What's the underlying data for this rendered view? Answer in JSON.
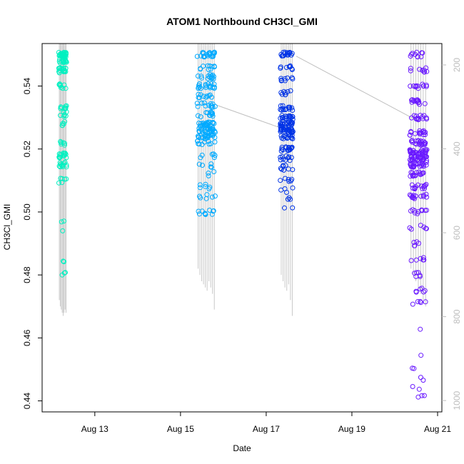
{
  "chart_data": {
    "type": "scatter",
    "title": "ATOM1 Northbound CH3Cl_GMI",
    "xlabel": "Date",
    "ylabel": "CH3Cl_GMI",
    "x_ticks": [
      "Aug 13",
      "Aug 15",
      "Aug 17",
      "Aug 19",
      "Aug 21"
    ],
    "x_tick_days": [
      13,
      15,
      17,
      19,
      21
    ],
    "xlim_days": [
      11.77,
      21.1
    ],
    "ylim": [
      0.4365,
      0.5535
    ],
    "y_ticks": [
      0.44,
      0.46,
      0.48,
      0.5,
      0.52,
      0.54
    ],
    "right_axis": {
      "ticks": [
        200,
        400,
        600,
        800,
        1000
      ],
      "lim": [
        149,
        1027
      ],
      "color": "#bdbdbd",
      "description": "secondary axis, values increase downward"
    },
    "series": [
      {
        "color": "#00f0c0",
        "day_center": 12.25,
        "day_spread": 0.18,
        "samples": [
          [
            0.55,
            32
          ],
          [
            0.548,
            14
          ],
          [
            0.545,
            18
          ],
          [
            0.54,
            8
          ],
          [
            0.533,
            8
          ],
          [
            0.531,
            7
          ],
          [
            0.528,
            5
          ],
          [
            0.522,
            6
          ],
          [
            0.518,
            14
          ],
          [
            0.515,
            13
          ],
          [
            0.51,
            6
          ],
          [
            0.497,
            2
          ],
          [
            0.494,
            1
          ],
          [
            0.484,
            2
          ],
          [
            0.48,
            3
          ]
        ],
        "curtain_bottom_values": [
          0.472,
          0.47,
          0.469,
          0.468,
          0.467,
          0.468,
          0.469,
          0.468
        ]
      },
      {
        "color": "#00aaff",
        "day_center": 15.6,
        "day_spread": 0.42,
        "samples": [
          [
            0.55,
            22
          ],
          [
            0.546,
            10
          ],
          [
            0.543,
            14
          ],
          [
            0.54,
            18
          ],
          [
            0.537,
            10
          ],
          [
            0.534,
            14
          ],
          [
            0.531,
            12
          ],
          [
            0.528,
            22
          ],
          [
            0.526,
            26
          ],
          [
            0.524,
            20
          ],
          [
            0.522,
            10
          ],
          [
            0.518,
            6
          ],
          [
            0.515,
            5
          ],
          [
            0.512,
            3
          ],
          [
            0.508,
            6
          ],
          [
            0.505,
            6
          ],
          [
            0.5,
            10
          ]
        ],
        "curtain_bottom_values": [
          0.482,
          0.48,
          0.478,
          0.477,
          0.476,
          0.475,
          0.478,
          0.476,
          0.474,
          0.469
        ]
      },
      {
        "color": "#0033e6",
        "day_center": 17.48,
        "day_spread": 0.3,
        "samples": [
          [
            0.55,
            16
          ],
          [
            0.546,
            8
          ],
          [
            0.542,
            8
          ],
          [
            0.538,
            8
          ],
          [
            0.533,
            14
          ],
          [
            0.53,
            18
          ],
          [
            0.528,
            22
          ],
          [
            0.526,
            26
          ],
          [
            0.524,
            14
          ],
          [
            0.52,
            16
          ],
          [
            0.517,
            10
          ],
          [
            0.514,
            8
          ],
          [
            0.51,
            6
          ],
          [
            0.507,
            4
          ],
          [
            0.504,
            3
          ],
          [
            0.501,
            2
          ]
        ],
        "curtain_bottom_values": [
          0.48,
          0.478,
          0.476,
          0.475,
          0.477,
          0.472,
          0.467
        ]
      },
      {
        "color": "#6a1aff",
        "day_center": 20.55,
        "day_spread": 0.4,
        "samples": [
          [
            0.55,
            10
          ],
          [
            0.545,
            10
          ],
          [
            0.54,
            12
          ],
          [
            0.535,
            14
          ],
          [
            0.53,
            14
          ],
          [
            0.525,
            16
          ],
          [
            0.522,
            22
          ],
          [
            0.519,
            30
          ],
          [
            0.517,
            30
          ],
          [
            0.515,
            24
          ],
          [
            0.512,
            16
          ],
          [
            0.508,
            14
          ],
          [
            0.505,
            14
          ],
          [
            0.5,
            10
          ],
          [
            0.495,
            6
          ],
          [
            0.49,
            5
          ],
          [
            0.485,
            6
          ],
          [
            0.48,
            6
          ],
          [
            0.475,
            6
          ],
          [
            0.471,
            5
          ],
          [
            0.463,
            1
          ],
          [
            0.455,
            1
          ],
          [
            0.45,
            2
          ],
          [
            0.447,
            2
          ],
          [
            0.444,
            2
          ],
          [
            0.441,
            3
          ]
        ],
        "curtain_bottom_values": [
          0.482,
          0.48,
          0.478,
          0.476,
          0.474,
          0.472,
          0.47
        ]
      }
    ],
    "connector_lines": [
      {
        "x_days": [
          15.83,
          17.38
        ],
        "y": [
          0.534,
          0.5265
        ]
      },
      {
        "x_days": [
          17.7,
          20.5
        ],
        "y": [
          0.5495,
          0.5292
        ]
      }
    ],
    "grid": false,
    "legend": "none"
  }
}
